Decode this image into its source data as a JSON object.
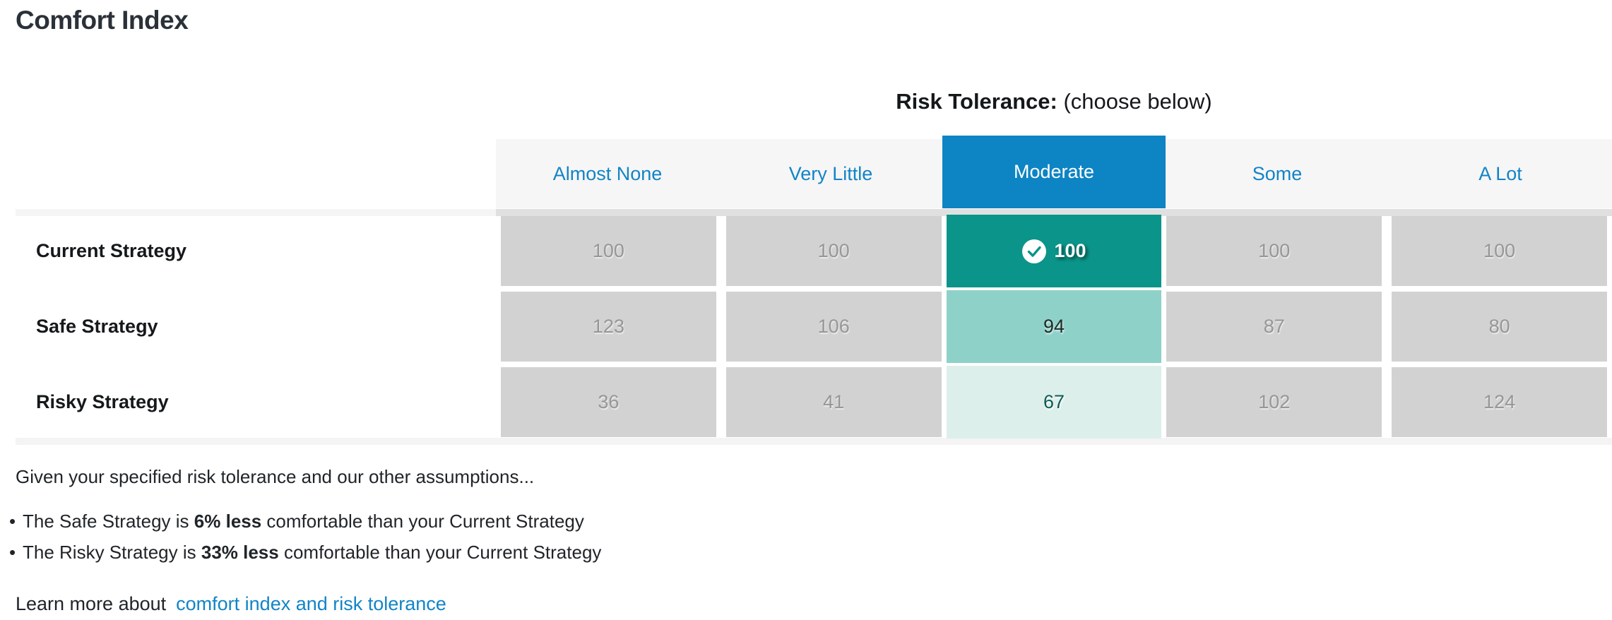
{
  "page": {
    "title": "Comfort Index"
  },
  "risk_tolerance": {
    "label_bold": "Risk Tolerance:",
    "label_rest": " (choose below)"
  },
  "columns": [
    "Almost None",
    "Very Little",
    "Moderate",
    "Some",
    "A Lot"
  ],
  "selected_column": "Moderate",
  "rows": [
    {
      "label": "Current Strategy",
      "values": [
        100,
        100,
        100,
        100,
        100
      ]
    },
    {
      "label": "Safe Strategy",
      "values": [
        123,
        106,
        94,
        87,
        80
      ]
    },
    {
      "label": "Risky Strategy",
      "values": [
        36,
        41,
        67,
        102,
        124
      ]
    }
  ],
  "footer": {
    "intro": "Given your specified risk tolerance and our other assumptions...",
    "bullets": [
      {
        "pre": "The Safe Strategy is ",
        "bold": "6% less",
        "post": " comfortable than your Current Strategy"
      },
      {
        "pre": "The Risky Strategy is ",
        "bold": "33% less",
        "post": " comfortable than your Current Strategy"
      }
    ],
    "learn_more": "Learn more about",
    "link": "comfort index and risk tolerance"
  },
  "icons": {
    "selected_cell": "check-circle-icon"
  },
  "colors": {
    "accent_blue": "#0d84c4",
    "link_blue": "#1284c6",
    "selected_teal": "#0b9489",
    "teal_medium": "#8ed1c9",
    "teal_light": "#ddefeb",
    "cell_gray": "#d2d2d2",
    "cell_text_gray": "#979797",
    "header_bg": "#f6f6f6",
    "title_text": "#2b3138"
  }
}
